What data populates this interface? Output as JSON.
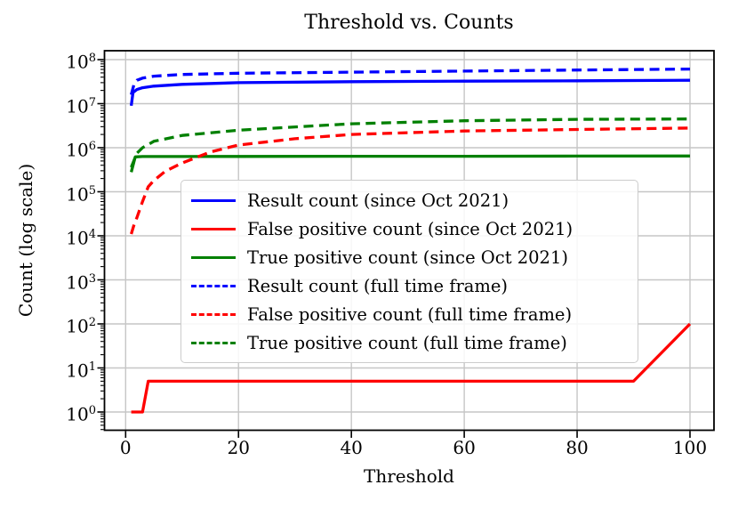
{
  "title": "Threshold vs. Counts",
  "chart_data": {
    "type": "line",
    "title": "Threshold vs. Counts",
    "xlabel": "Threshold",
    "ylabel": "Count (log scale)",
    "y_scale": "log",
    "grid": true,
    "legend_position": "inside center-left",
    "xlim": [
      -4,
      104.3
    ],
    "ylim": [
      0.4,
      160000000
    ],
    "x_ticks": [
      0,
      20,
      40,
      60,
      80,
      100
    ],
    "y_tick_mantissa": "10",
    "y_tick_exponents": [
      8,
      7,
      6,
      5,
      4,
      3,
      2,
      1,
      0
    ],
    "colors": {
      "blue": "#0000ff",
      "red": "#ff0000",
      "green": "#008000"
    },
    "series": [
      {
        "name": "Result count (since Oct 2021)",
        "color": "#0000ff",
        "style": "solid",
        "x": [
          1,
          1.3,
          2,
          3,
          5,
          10,
          20,
          40,
          60,
          80,
          100
        ],
        "y": [
          9000000,
          18000000,
          21000000,
          23000000,
          25000000,
          27500000,
          30000000,
          31500000,
          32500000,
          33000000,
          34000000
        ]
      },
      {
        "name": "False positive count (since Oct 2021)",
        "color": "#ff0000",
        "style": "solid",
        "x": [
          1,
          3,
          4,
          10,
          20,
          40,
          60,
          80,
          90,
          100
        ],
        "y": [
          1,
          1,
          5,
          5,
          5,
          5,
          5,
          5,
          5,
          100
        ]
      },
      {
        "name": "True positive count (since Oct 2021)",
        "color": "#008000",
        "style": "solid",
        "x": [
          1,
          1.7,
          3,
          10,
          20,
          40,
          60,
          80,
          100
        ],
        "y": [
          280000,
          620000,
          630000,
          630000,
          635000,
          640000,
          640000,
          645000,
          650000
        ]
      },
      {
        "name": "Result count (full time frame)",
        "color": "#0000ff",
        "style": "dashed",
        "x": [
          1,
          1.5,
          2,
          3,
          5,
          10,
          20,
          40,
          60,
          80,
          100
        ],
        "y": [
          16000000,
          28000000,
          34000000,
          38000000,
          42000000,
          46000000,
          49000000,
          52000000,
          55000000,
          58000000,
          61000000
        ]
      },
      {
        "name": "False positive count (full time frame)",
        "color": "#ff0000",
        "style": "dashed",
        "x": [
          1,
          1.5,
          2,
          3,
          4,
          5,
          7,
          10,
          15,
          20,
          30,
          40,
          60,
          80,
          100
        ],
        "y": [
          11000,
          18000,
          26000,
          60000,
          130000,
          180000,
          290000,
          450000,
          800000,
          1150000,
          1600000,
          2000000,
          2400000,
          2600000,
          2800000
        ]
      },
      {
        "name": "True positive count (full time frame)",
        "color": "#008000",
        "style": "dashed",
        "x": [
          1,
          2,
          3,
          5,
          10,
          20,
          40,
          60,
          80,
          100
        ],
        "y": [
          360000,
          750000,
          1000000,
          1400000,
          1900000,
          2500000,
          3500000,
          4100000,
          4400000,
          4500000
        ]
      }
    ]
  }
}
